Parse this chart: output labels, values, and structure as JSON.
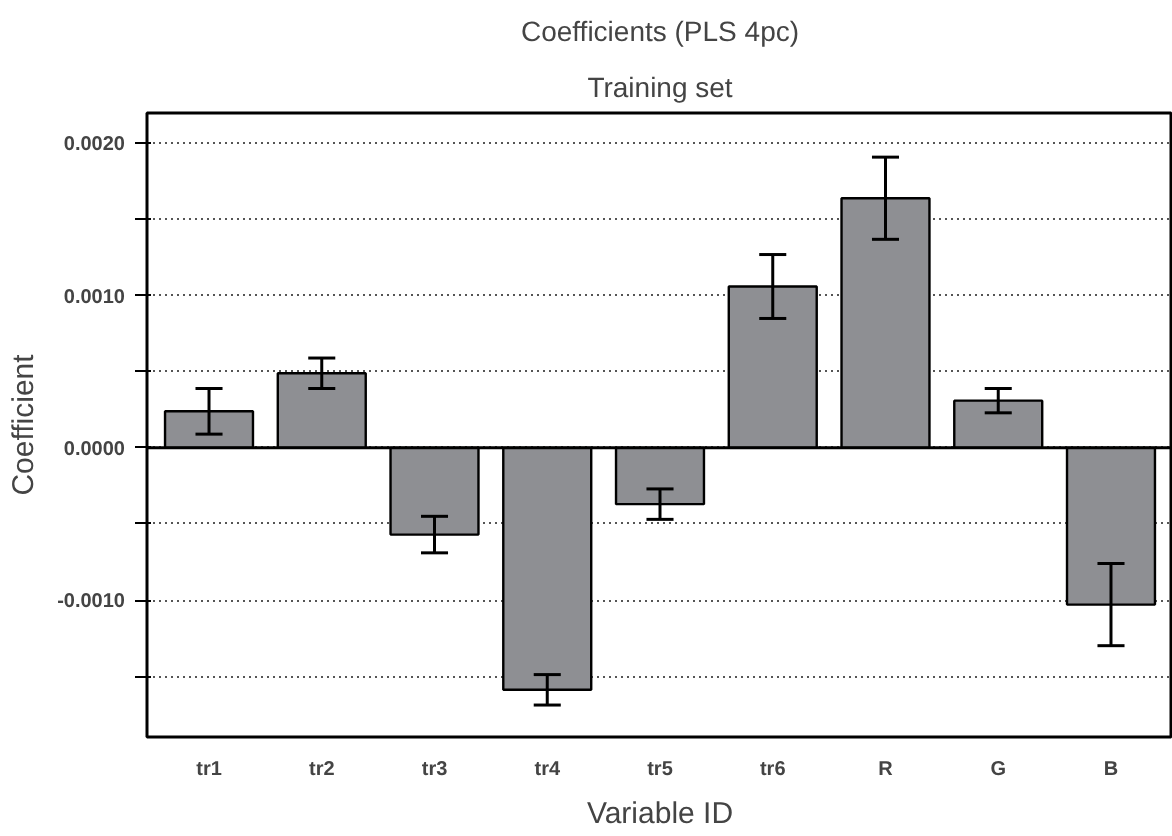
{
  "chart_data": {
    "type": "bar",
    "title": "Coefficients (PLS 4pc)",
    "subtitle": "Training set",
    "xlabel": "Variable ID",
    "ylabel": "Coefficient",
    "categories": [
      "tr1",
      "tr2",
      "tr3",
      "tr4",
      "tr5",
      "tr6",
      "R",
      "G",
      "B"
    ],
    "series": [
      {
        "color": "#8e8f93",
        "values": [
          0.00024,
          0.00049,
          -0.00057,
          -0.00159,
          -0.00037,
          0.00106,
          0.00164,
          0.00031,
          -0.00103
        ],
        "errors": [
          0.00015,
          0.0001,
          0.00012,
          0.0001,
          0.0001,
          0.00021,
          0.00027,
          8e-05,
          0.00027
        ]
      }
    ],
    "ylim": [
      -0.0019,
      0.0022
    ],
    "yticks": [
      {
        "value": -0.0015,
        "label": null
      },
      {
        "value": -0.001,
        "label": "-0.0010"
      },
      {
        "value": -0.0005,
        "label": null
      },
      {
        "value": 0,
        "label": "0.0000"
      },
      {
        "value": 0.0005,
        "label": null
      },
      {
        "value": 0.001,
        "label": "0.0010"
      },
      {
        "value": 0.0015,
        "label": null
      },
      {
        "value": 0.002,
        "label": "0.0020"
      }
    ],
    "grid": "y"
  }
}
